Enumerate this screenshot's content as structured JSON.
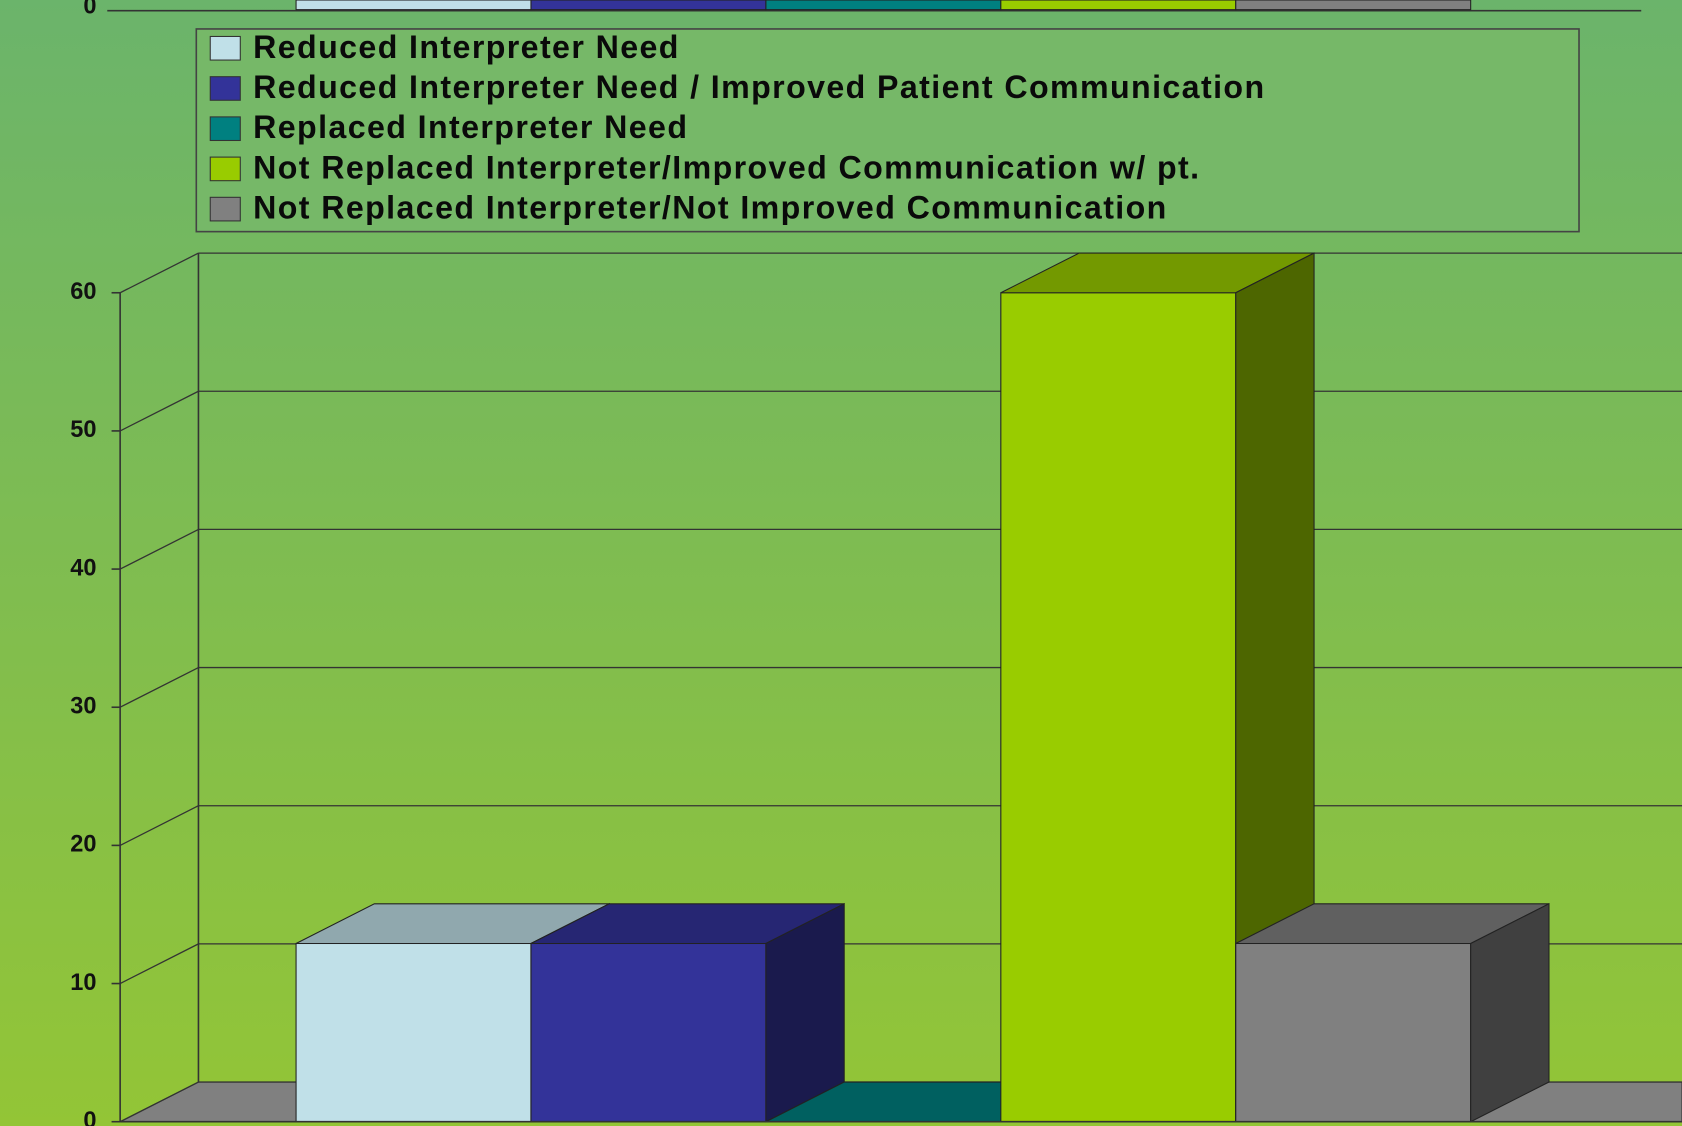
{
  "chart_data": {
    "type": "bar3d",
    "categories": [
      null
    ],
    "series": [
      {
        "name": "Reduced Interpreter Need",
        "color": "#c0e0e8",
        "values": [
          12.9
        ]
      },
      {
        "name": "Reduced Interpreter Need / Improved Patient Communication",
        "color": "#333399",
        "values": [
          12.9
        ]
      },
      {
        "name": "Replaced Interpreter Need",
        "color": "#008080",
        "values": [
          0
        ]
      },
      {
        "name": "Not Replaced Interpreter/Improved Communication w/ pt.",
        "color": "#99cc00",
        "values": [
          60
        ]
      },
      {
        "name": "Not Replaced Interpreter/Not Improved Communication",
        "color": "#808080",
        "values": [
          12.9
        ]
      }
    ],
    "ylim": [
      0,
      60
    ],
    "yticks": [
      0,
      10,
      20,
      30,
      40,
      50,
      60
    ],
    "grid": true,
    "legend": "top"
  }
}
